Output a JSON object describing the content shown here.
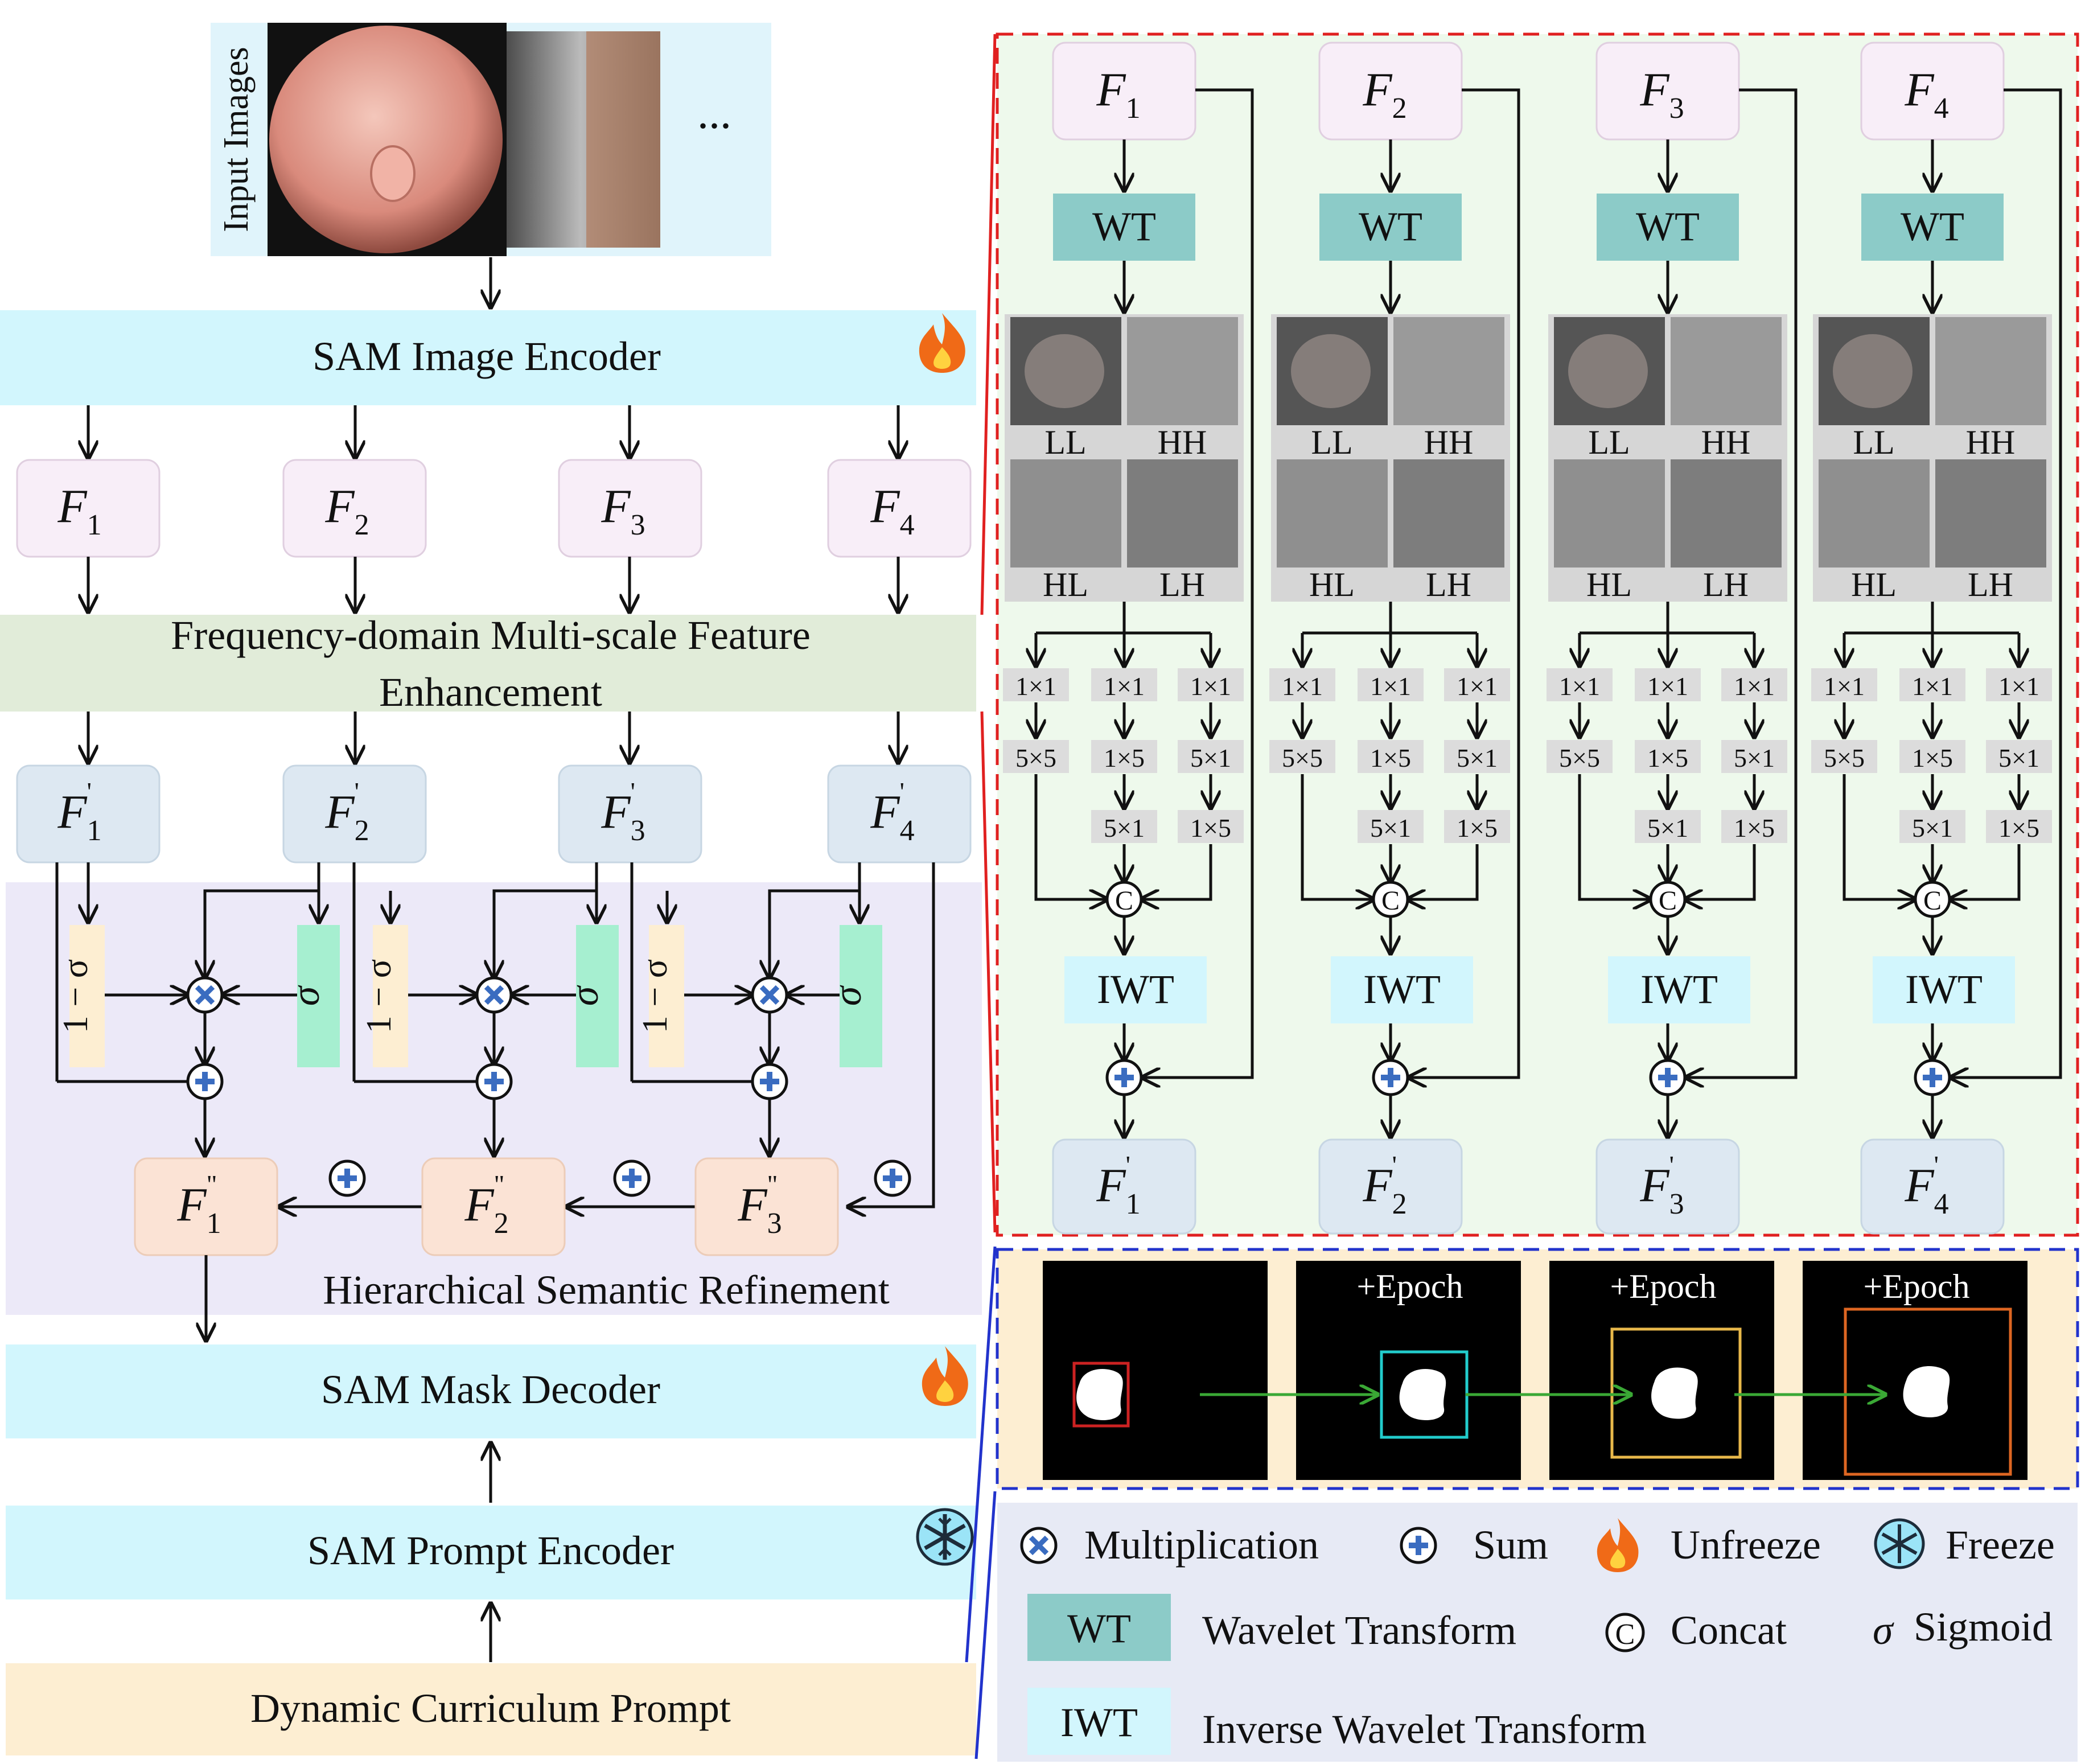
{
  "input": {
    "label": "Input Images",
    "ellipsis": "..."
  },
  "encoder": {
    "image_encoder": "SAM Image Encoder",
    "mask_decoder": "SAM Mask Decoder",
    "prompt_encoder": "SAM Prompt Encoder",
    "curriculum": "Dynamic Curriculum Prompt"
  },
  "fmfe": {
    "line1": "Frequency-domain Multi-scale Feature",
    "line2": "Enhancement"
  },
  "hsr": {
    "label": "Hierarchical Semantic Refinement",
    "one_minus_sigma": "1 − σ",
    "sigma": "σ"
  },
  "features": {
    "letter": "F",
    "indices": [
      "1",
      "2",
      "3",
      "4"
    ],
    "prime": "'",
    "double_prime": "\"",
    "refined_indices": [
      "1",
      "2",
      "3"
    ]
  },
  "wavelet": {
    "wt": "WT",
    "iwt": "IWT",
    "subbands": [
      "LL",
      "HH",
      "HL",
      "LH"
    ],
    "conv_row1": [
      "1×1",
      "1×1",
      "1×1"
    ],
    "conv_row2": [
      "5×5",
      "1×5",
      "5×1"
    ],
    "conv_row3": [
      "5×1",
      "1×5"
    ],
    "concat": "C"
  },
  "curriculum_panel": {
    "epoch_label": "+Epoch",
    "box_colors": [
      "#cc2222",
      "#22cccc",
      "#e8b84a",
      "#dd6622"
    ]
  },
  "legend": {
    "multiplication": "Multiplication",
    "sum": "Sum",
    "unfreeze": "Unfreeze",
    "freeze": "Freeze",
    "wt_abbr": "WT",
    "wt": "Wavelet Transform",
    "concat": "Concat",
    "sigmoid": "Sigmoid",
    "sigma_symbol": "σ",
    "concat_symbol": "C",
    "iwt_abbr": "IWT",
    "iwt": "Inverse Wavelet Transform"
  },
  "icons": {
    "fire": "fire-icon",
    "freeze": "snowflake-icon",
    "multiply": "multiply-icon",
    "sum": "sum-icon"
  },
  "colors": {
    "cyan_block": "#d2f6fd",
    "fmfe": "#e1ecd9",
    "hsr_bg": "#ece9f8",
    "wavelet_bg": "#eef9ec",
    "curriculum_bg": "#fdeed2",
    "legend_bg": "#e7eaf5",
    "f_box": "#f8eef8",
    "fprime_box": "#dde8f2",
    "fdouble_box": "#fbe3d5",
    "wt_box": "#8ccbc8",
    "iwt_box": "#d2f6fd",
    "sigma_box": "#a6efd0",
    "one_minus_box": "#fdeed2",
    "red_dash": "#e02020",
    "blue_dash": "#2233cc"
  }
}
